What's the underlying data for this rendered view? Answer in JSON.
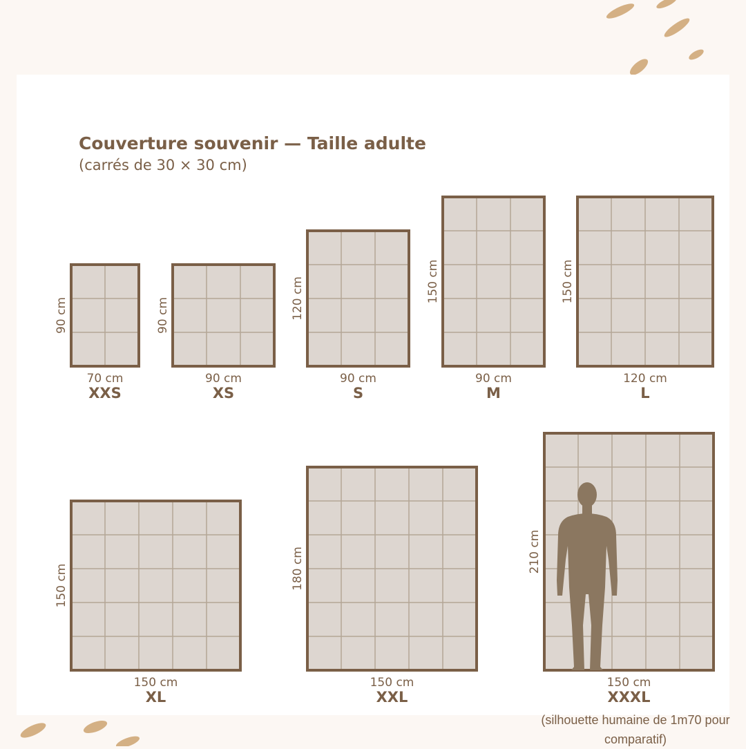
{
  "header": {
    "title": "Couverture souvenir — Taille adulte",
    "subtitle": "(carrés de 30 × 30 cm)"
  },
  "sizes": [
    {
      "name": "XXS",
      "width": "70 cm",
      "height": "90 cm"
    },
    {
      "name": "XS",
      "width": "90 cm",
      "height": "90 cm"
    },
    {
      "name": "S",
      "width": "90 cm",
      "height": "120 cm"
    },
    {
      "name": "M",
      "width": "90 cm",
      "height": "150 cm"
    },
    {
      "name": "L",
      "width": "120 cm",
      "height": "150 cm"
    },
    {
      "name": "XL",
      "width": "150 cm",
      "height": "150 cm"
    },
    {
      "name": "XXL",
      "width": "150 cm",
      "height": "180 cm"
    },
    {
      "name": "XXXL",
      "width": "150 cm",
      "height": "210 cm"
    }
  ],
  "note": "(silhouette humaine de 1m70 pour comparatif)"
}
